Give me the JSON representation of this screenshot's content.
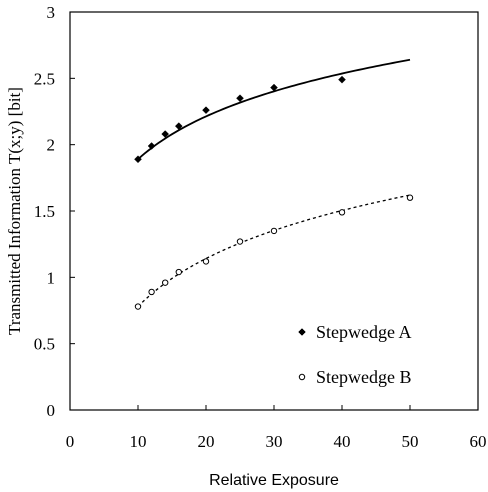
{
  "chart_data": {
    "type": "scatter",
    "xlabel": "Relative Exposure",
    "ylabel": "Transmitted Information T(x;y) [bit]",
    "xlim": [
      0,
      60
    ],
    "ylim": [
      0,
      3
    ],
    "xticks": [
      0,
      10,
      20,
      30,
      40,
      50,
      60
    ],
    "yticks": [
      0,
      0.5,
      1,
      1.5,
      2,
      2.5,
      3
    ],
    "xtick_labels": [
      "0",
      "10",
      "20",
      "30",
      "40",
      "50",
      "60"
    ],
    "ytick_labels": [
      "0",
      "0.5",
      "1",
      "1.5",
      "2",
      "2.5",
      "3"
    ],
    "grid": false,
    "legend_position": "bottom-right",
    "series": [
      {
        "name": "Stepwedge A",
        "marker": "filled-diamond",
        "x": [
          10,
          12,
          14,
          16,
          20,
          25,
          30,
          40
        ],
        "y": [
          1.89,
          1.99,
          2.08,
          2.14,
          2.26,
          2.35,
          2.43,
          2.49
        ],
        "fit": {
          "style": "solid",
          "x_range": [
            10,
            50
          ],
          "y_at_x_min": 1.89,
          "y_at_x_max": 2.64
        }
      },
      {
        "name": "Stepwedge B",
        "marker": "open-circle",
        "x": [
          10,
          12,
          14,
          16,
          20,
          25,
          30,
          40,
          50
        ],
        "y": [
          0.78,
          0.89,
          0.96,
          1.04,
          1.12,
          1.27,
          1.35,
          1.49,
          1.6
        ],
        "fit": {
          "style": "dashed",
          "x_range": [
            10,
            50
          ],
          "y_at_x_min": 0.78,
          "y_at_x_max": 1.62
        }
      }
    ]
  }
}
